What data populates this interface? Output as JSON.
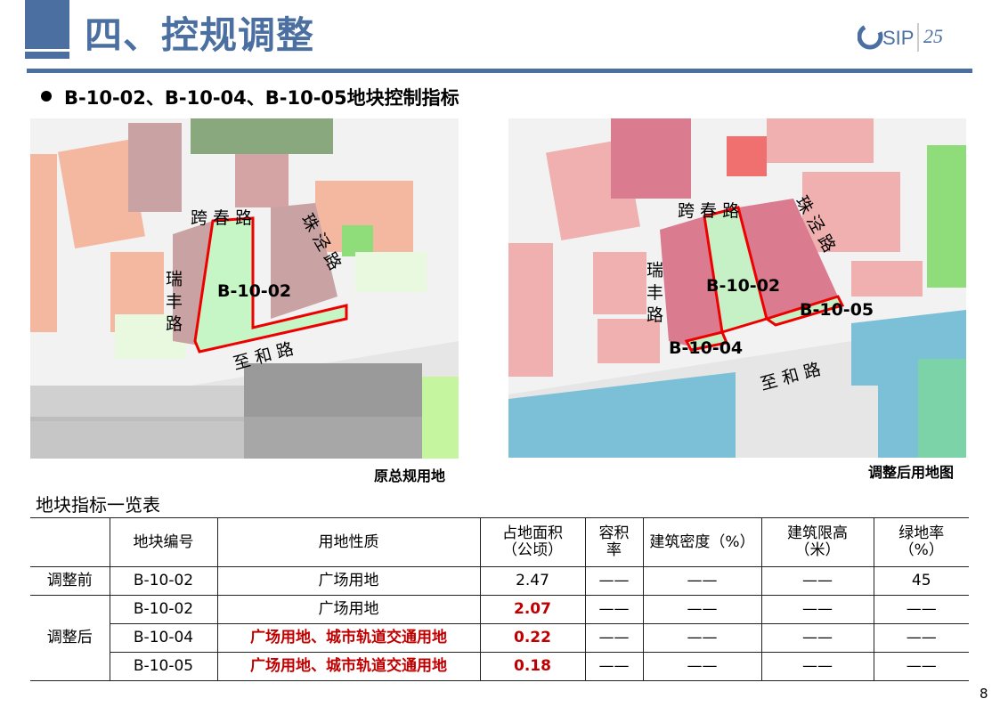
{
  "header": {
    "title": "四、控规调整",
    "logo_text": "SIP",
    "logo_mark": "25"
  },
  "subtitle": "B-10-02、B-10-04、B-10-05地块控制指标",
  "map_left": {
    "caption": "原总规用地",
    "roads": {
      "kuachun": "跨 春 路",
      "zhujing": "珠 泾 路",
      "ruifeng": "瑞 丰 路",
      "zhihe": "至 和 路"
    },
    "parcel": "B-10-02"
  },
  "map_right": {
    "caption": "调整后用地图",
    "roads": {
      "kuachun": "跨 春 路",
      "zhujing": "珠 泾 路",
      "ruifeng": "瑞 丰 路",
      "zhihe": "至 和 路"
    },
    "parcels": [
      "B-10-02",
      "B-10-04",
      "B-10-05"
    ]
  },
  "table": {
    "title": "地块指标一览表",
    "headers": [
      "",
      "地块编号",
      "用地性质",
      "占地面积（公顷）",
      "容积率",
      "建筑密度（%）",
      "建筑限高（米）",
      "绿地率（%）"
    ],
    "rows": [
      {
        "group": "调整前",
        "id": "B-10-02",
        "use": "广场用地",
        "area": "2.47",
        "far": "——",
        "density": "——",
        "height": "——",
        "green": "45"
      },
      {
        "group": "调整后",
        "id": "B-10-02",
        "use": "广场用地",
        "area": "2.07",
        "far": "——",
        "density": "——",
        "height": "——",
        "green": "——"
      },
      {
        "id": "B-10-04",
        "use": "广场用地、城市轨道交通用地",
        "area": "0.22",
        "far": "——",
        "density": "——",
        "height": "——",
        "green": "——"
      },
      {
        "id": "B-10-05",
        "use": "广场用地、城市轨道交通用地",
        "area": "0.18",
        "far": "——",
        "density": "——",
        "height": "——",
        "green": "——"
      }
    ]
  },
  "page_number": "8",
  "colors": {
    "brand": "#4a6fa0",
    "highlight": "#c00000"
  }
}
